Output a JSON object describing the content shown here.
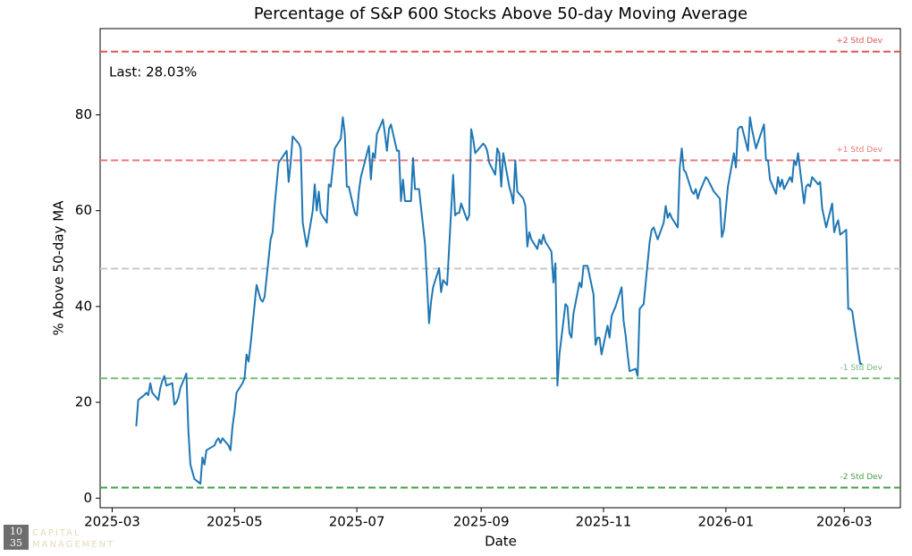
{
  "chart_data": {
    "type": "line",
    "title": "Percentage of S&P 600 Stocks Above 50-day Moving Average",
    "xlabel": "Date",
    "ylabel": "% Above 50-day MA",
    "annotation": "Last: 28.03%",
    "logo": {
      "top": "10",
      "bottom": "35",
      "line1": "CAPITAL",
      "line2": "MANAGEMENT"
    },
    "xlim": [
      "2025-02-23",
      "2026-03-29"
    ],
    "xticks": [
      "2025-03",
      "2025-05",
      "2025-07",
      "2025-09",
      "2025-11",
      "2026-01",
      "2026-03"
    ],
    "ylim": [
      -2,
      98
    ],
    "yticks": [
      0,
      20,
      40,
      60,
      80
    ],
    "reference_lines": [
      {
        "value": 93.2,
        "label": "+2 Std Dev",
        "color": "#e05555"
      },
      {
        "value": 70.5,
        "label": "+1 Std Dev",
        "color": "#ee7777"
      },
      {
        "value": 47.9,
        "color": "#c8c8c8"
      },
      {
        "value": 25.0,
        "label": "-1 Std Dev",
        "color": "#77bb77"
      },
      {
        "value": 2.2,
        "label": "-2 Std Dev",
        "color": "#44a044"
      }
    ],
    "x": [
      "2025-03-13",
      "2025-03-14",
      "2025-03-17",
      "2025-03-18",
      "2025-03-19",
      "2025-03-20",
      "2025-03-21",
      "2025-03-24",
      "2025-03-25",
      "2025-03-26",
      "2025-03-27",
      "2025-03-28",
      "2025-03-31",
      "2025-04-01",
      "2025-04-02",
      "2025-04-03",
      "2025-04-04",
      "2025-04-07",
      "2025-04-08",
      "2025-04-09",
      "2025-04-10",
      "2025-04-11",
      "2025-04-14",
      "2025-04-15",
      "2025-04-16",
      "2025-04-17",
      "2025-04-21",
      "2025-04-22",
      "2025-04-23",
      "2025-04-24",
      "2025-04-25",
      "2025-04-28",
      "2025-04-29",
      "2025-04-30",
      "2025-05-01",
      "2025-05-02",
      "2025-05-05",
      "2025-05-06",
      "2025-05-07",
      "2025-05-08",
      "2025-05-09",
      "2025-05-12",
      "2025-05-13",
      "2025-05-14",
      "2025-05-15",
      "2025-05-16",
      "2025-05-19",
      "2025-05-20",
      "2025-05-21",
      "2025-05-22",
      "2025-05-23",
      "2025-05-27",
      "2025-05-28",
      "2025-05-29",
      "2025-05-30",
      "2025-06-02",
      "2025-06-03",
      "2025-06-04",
      "2025-06-05",
      "2025-06-06",
      "2025-06-09",
      "2025-06-10",
      "2025-06-11",
      "2025-06-12",
      "2025-06-13",
      "2025-06-16",
      "2025-06-17",
      "2025-06-18",
      "2025-06-20",
      "2025-06-23",
      "2025-06-24",
      "2025-06-25",
      "2025-06-26",
      "2025-06-27",
      "2025-06-30",
      "2025-07-01",
      "2025-07-02",
      "2025-07-03",
      "2025-07-07",
      "2025-07-08",
      "2025-07-09",
      "2025-07-10",
      "2025-07-11",
      "2025-07-14",
      "2025-07-15",
      "2025-07-16",
      "2025-07-17",
      "2025-07-18",
      "2025-07-21",
      "2025-07-22",
      "2025-07-23",
      "2025-07-24",
      "2025-07-25",
      "2025-07-28",
      "2025-07-29",
      "2025-07-30",
      "2025-07-31",
      "2025-08-01",
      "2025-08-04",
      "2025-08-05",
      "2025-08-06",
      "2025-08-07",
      "2025-08-08",
      "2025-08-11",
      "2025-08-12",
      "2025-08-13",
      "2025-08-14",
      "2025-08-15",
      "2025-08-18",
      "2025-08-19",
      "2025-08-20",
      "2025-08-21",
      "2025-08-22",
      "2025-08-25",
      "2025-08-26",
      "2025-08-27",
      "2025-08-28",
      "2025-08-29",
      "2025-09-02",
      "2025-09-03",
      "2025-09-04",
      "2025-09-05",
      "2025-09-08",
      "2025-09-09",
      "2025-09-10",
      "2025-09-11",
      "2025-09-12",
      "2025-09-15",
      "2025-09-16",
      "2025-09-17",
      "2025-09-18",
      "2025-09-19",
      "2025-09-22",
      "2025-09-23",
      "2025-09-24",
      "2025-09-25",
      "2025-09-26",
      "2025-09-29",
      "2025-09-30",
      "2025-10-01",
      "2025-10-02",
      "2025-10-03",
      "2025-10-06",
      "2025-10-07",
      "2025-10-08",
      "2025-10-09",
      "2025-10-10",
      "2025-10-13",
      "2025-10-14",
      "2025-10-15",
      "2025-10-16",
      "2025-10-17",
      "2025-10-20",
      "2025-10-21",
      "2025-10-22",
      "2025-10-23",
      "2025-10-24",
      "2025-10-27",
      "2025-10-28",
      "2025-10-29",
      "2025-10-30",
      "2025-10-31",
      "2025-11-03",
      "2025-11-04",
      "2025-11-05",
      "2025-11-06",
      "2025-11-07",
      "2025-11-10",
      "2025-11-11",
      "2025-11-12",
      "2025-11-13",
      "2025-11-14",
      "2025-11-17",
      "2025-11-18",
      "2025-11-19",
      "2025-11-20",
      "2025-11-21",
      "2025-11-24",
      "2025-11-25",
      "2025-11-26",
      "2025-11-28",
      "2025-12-01",
      "2025-12-02",
      "2025-12-03",
      "2025-12-04",
      "2025-12-05",
      "2025-12-08",
      "2025-12-09",
      "2025-12-10",
      "2025-12-11",
      "2025-12-12",
      "2025-12-15",
      "2025-12-16",
      "2025-12-17",
      "2025-12-18",
      "2025-12-19",
      "2025-12-22",
      "2025-12-23",
      "2025-12-26",
      "2025-12-29",
      "2025-12-30",
      "2025-12-31",
      "2026-01-02",
      "2026-01-05",
      "2026-01-06",
      "2026-01-07",
      "2026-01-08",
      "2026-01-09",
      "2026-01-12",
      "2026-01-13",
      "2026-01-14",
      "2026-01-15",
      "2026-01-16",
      "2026-01-20",
      "2026-01-21",
      "2026-01-22",
      "2026-01-23",
      "2026-01-26",
      "2026-01-27",
      "2026-01-28",
      "2026-01-29",
      "2026-01-30",
      "2026-02-02",
      "2026-02-03",
      "2026-02-04",
      "2026-02-05",
      "2026-02-06",
      "2026-02-09",
      "2026-02-10",
      "2026-02-11",
      "2026-02-12",
      "2026-02-13",
      "2026-02-16",
      "2026-02-17",
      "2026-02-18",
      "2026-02-19",
      "2026-02-20",
      "2026-02-23",
      "2026-02-24",
      "2026-02-25",
      "2026-02-26",
      "2026-02-27",
      "2026-03-02",
      "2026-03-03",
      "2026-03-04",
      "2026-03-05",
      "2026-03-06",
      "2026-03-09",
      "2026-03-10"
    ],
    "series": [
      {
        "name": "% Above 50-day MA",
        "color": "#1f77b4",
        "values": [
          15,
          20.5,
          21.5,
          22,
          21.5,
          24,
          22,
          20.5,
          23,
          24.5,
          25.5,
          23.5,
          24,
          19.5,
          20,
          21,
          23,
          26,
          14,
          7,
          5.5,
          4,
          3,
          8.5,
          7,
          10,
          11,
          12,
          12.5,
          11.5,
          12.5,
          11,
          10,
          15,
          18,
          22,
          24,
          25,
          30,
          28.5,
          32,
          44.5,
          43,
          41.5,
          41,
          42,
          54,
          55.5,
          61,
          65.5,
          70,
          72.5,
          66,
          70,
          75.5,
          74,
          73,
          57.5,
          55,
          52.5,
          60,
          65.5,
          60,
          64,
          59.5,
          57.5,
          65.5,
          65,
          73,
          75,
          79.5,
          76,
          65,
          65,
          59.5,
          59,
          64,
          67,
          73.5,
          66.5,
          72,
          71,
          76,
          79,
          76,
          72.5,
          77,
          78,
          72.5,
          72.5,
          62,
          66.5,
          62,
          62,
          71,
          64.5,
          64.5,
          64.5,
          53,
          45,
          36.5,
          41,
          44,
          48,
          43,
          45.5,
          45,
          44.5,
          67.5,
          59,
          59.5,
          59.5,
          61.5,
          58,
          59,
          77,
          75,
          72,
          74,
          73.5,
          72.5,
          70,
          67.5,
          73,
          72,
          65,
          72,
          65,
          63.5,
          61.5,
          70.5,
          64,
          62.5,
          61,
          52.5,
          55.5,
          54,
          52,
          54,
          53,
          55,
          53.5,
          51.5,
          45,
          49,
          23.5,
          30,
          40.5,
          40,
          34.5,
          33.5,
          38.5,
          45,
          44,
          48.5,
          48.5,
          48.5,
          42.5,
          32,
          33.5,
          33.5,
          30,
          36,
          33.5,
          38,
          39,
          40,
          44,
          37,
          34,
          30,
          26.5,
          27,
          25.5,
          39.5,
          40,
          40.5,
          53.5,
          56,
          56.5,
          54,
          57.5,
          61,
          58.5,
          59.5,
          58.5,
          56.5,
          69,
          73,
          68.5,
          68,
          64,
          63.5,
          64.5,
          62.5,
          64,
          67,
          66.5,
          64,
          62.5,
          54.5,
          56,
          65,
          72,
          69,
          77,
          77.5,
          77.5,
          72.5,
          79.5,
          77,
          75,
          73,
          78,
          70.5,
          70.5,
          66.5,
          63.5,
          67,
          65,
          66.5,
          64.5,
          67,
          66,
          70.5,
          69.5,
          72,
          61.5,
          65,
          65.5,
          65,
          67,
          65.5,
          66,
          60.5,
          58.5,
          56.5,
          61.5,
          55.5,
          57,
          58,
          55,
          56,
          39.5,
          39.5,
          39,
          36,
          28,
          28.03
        ]
      }
    ]
  }
}
